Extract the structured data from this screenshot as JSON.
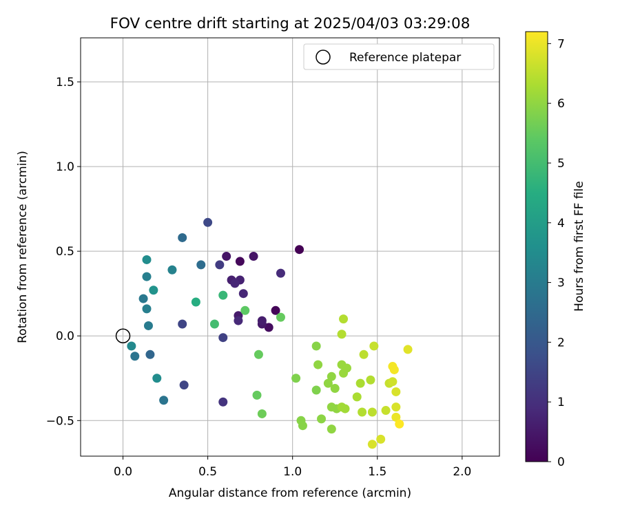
{
  "chart_data": {
    "type": "scatter",
    "title": "FOV centre drift starting at 2025/04/03 03:29:08",
    "xlabel": "Angular distance from reference (arcmin)",
    "ylabel": "Rotation from reference (arcmin)",
    "xlim": [
      -0.25,
      2.22
    ],
    "ylim": [
      -0.71,
      1.76
    ],
    "x_ticks": [
      0.0,
      0.5,
      1.0,
      1.5,
      2.0
    ],
    "x_tick_labels": [
      "0.0",
      "0.5",
      "1.0",
      "1.5",
      "2.0"
    ],
    "y_ticks": [
      -0.5,
      0.0,
      0.5,
      1.0,
      1.5
    ],
    "y_tick_labels": [
      "−0.5",
      "0.0",
      "0.5",
      "1.0",
      "1.5"
    ],
    "grid": true,
    "legend": {
      "position": "top-right",
      "entries": [
        "Reference platepar"
      ]
    },
    "reference_point": {
      "x": 0.0,
      "y": 0.0,
      "label": "Reference platepar"
    },
    "colorbar": {
      "label": "Hours from first FF file",
      "range": [
        0,
        7.2
      ],
      "ticks": [
        0,
        1,
        2,
        3,
        4,
        5,
        6,
        7
      ],
      "colormap": "viridis"
    },
    "points": [
      {
        "x": 1.04,
        "y": 0.51,
        "c": 0.0
      },
      {
        "x": 0.9,
        "y": 0.15,
        "c": 0.1
      },
      {
        "x": 0.69,
        "y": 0.44,
        "c": 0.15
      },
      {
        "x": 0.86,
        "y": 0.05,
        "c": 0.25
      },
      {
        "x": 0.61,
        "y": 0.47,
        "c": 0.4
      },
      {
        "x": 0.77,
        "y": 0.47,
        "c": 0.4
      },
      {
        "x": 0.82,
        "y": 0.07,
        "c": 0.5
      },
      {
        "x": 0.68,
        "y": 0.12,
        "c": 0.55
      },
      {
        "x": 0.82,
        "y": 0.09,
        "c": 0.6
      },
      {
        "x": 0.64,
        "y": 0.33,
        "c": 0.65
      },
      {
        "x": 0.69,
        "y": 0.33,
        "c": 0.7
      },
      {
        "x": 0.66,
        "y": 0.31,
        "c": 0.8
      },
      {
        "x": 0.71,
        "y": 0.25,
        "c": 0.8
      },
      {
        "x": 0.68,
        "y": 0.09,
        "c": 0.85
      },
      {
        "x": 0.93,
        "y": 0.37,
        "c": 0.9
      },
      {
        "x": 0.59,
        "y": -0.39,
        "c": 1.1
      },
      {
        "x": 0.57,
        "y": 0.42,
        "c": 1.3
      },
      {
        "x": 0.59,
        "y": -0.01,
        "c": 1.4
      },
      {
        "x": 0.36,
        "y": -0.29,
        "c": 1.5
      },
      {
        "x": 0.35,
        "y": 0.07,
        "c": 1.5
      },
      {
        "x": 0.5,
        "y": 0.67,
        "c": 1.6
      },
      {
        "x": 0.16,
        "y": -0.11,
        "c": 2.4
      },
      {
        "x": 0.35,
        "y": 0.58,
        "c": 2.5
      },
      {
        "x": 0.46,
        "y": 0.42,
        "c": 2.6
      },
      {
        "x": 0.07,
        "y": -0.12,
        "c": 2.8
      },
      {
        "x": 0.24,
        "y": -0.38,
        "c": 2.8
      },
      {
        "x": 0.12,
        "y": 0.22,
        "c": 2.9
      },
      {
        "x": 0.15,
        "y": 0.06,
        "c": 3.0
      },
      {
        "x": 0.14,
        "y": 0.16,
        "c": 3.1
      },
      {
        "x": 0.14,
        "y": 0.35,
        "c": 3.1
      },
      {
        "x": 0.29,
        "y": 0.39,
        "c": 3.2
      },
      {
        "x": 0.05,
        "y": -0.06,
        "c": 3.4
      },
      {
        "x": 0.2,
        "y": -0.25,
        "c": 3.5
      },
      {
        "x": 0.14,
        "y": 0.45,
        "c": 3.5
      },
      {
        "x": 0.18,
        "y": 0.27,
        "c": 3.7
      },
      {
        "x": 0.43,
        "y": 0.2,
        "c": 4.5
      },
      {
        "x": 0.59,
        "y": 0.24,
        "c": 4.8
      },
      {
        "x": 0.54,
        "y": 0.07,
        "c": 5.0
      },
      {
        "x": 0.72,
        "y": 0.15,
        "c": 5.4
      },
      {
        "x": 0.8,
        "y": -0.11,
        "c": 5.5
      },
      {
        "x": 0.93,
        "y": 0.11,
        "c": 5.5
      },
      {
        "x": 0.79,
        "y": -0.35,
        "c": 5.5
      },
      {
        "x": 0.82,
        "y": -0.46,
        "c": 5.6
      },
      {
        "x": 1.02,
        "y": -0.25,
        "c": 5.8
      },
      {
        "x": 1.14,
        "y": -0.32,
        "c": 5.8
      },
      {
        "x": 1.05,
        "y": -0.5,
        "c": 5.9
      },
      {
        "x": 1.14,
        "y": -0.06,
        "c": 5.9
      },
      {
        "x": 1.06,
        "y": -0.53,
        "c": 5.9
      },
      {
        "x": 1.17,
        "y": -0.49,
        "c": 5.95
      },
      {
        "x": 1.15,
        "y": -0.17,
        "c": 6.0
      },
      {
        "x": 1.21,
        "y": -0.28,
        "c": 6.0
      },
      {
        "x": 1.23,
        "y": -0.24,
        "c": 6.0
      },
      {
        "x": 1.25,
        "y": -0.31,
        "c": 6.0
      },
      {
        "x": 1.23,
        "y": -0.42,
        "c": 6.0
      },
      {
        "x": 1.23,
        "y": -0.55,
        "c": 6.0
      },
      {
        "x": 1.26,
        "y": -0.43,
        "c": 6.0
      },
      {
        "x": 1.29,
        "y": -0.17,
        "c": 6.1
      },
      {
        "x": 1.3,
        "y": -0.22,
        "c": 6.1
      },
      {
        "x": 1.32,
        "y": -0.19,
        "c": 6.1
      },
      {
        "x": 1.29,
        "y": -0.42,
        "c": 6.2
      },
      {
        "x": 1.31,
        "y": -0.43,
        "c": 6.2
      },
      {
        "x": 1.38,
        "y": -0.36,
        "c": 6.3
      },
      {
        "x": 1.4,
        "y": -0.28,
        "c": 6.3
      },
      {
        "x": 1.29,
        "y": 0.01,
        "c": 6.4
      },
      {
        "x": 1.3,
        "y": 0.1,
        "c": 6.4
      },
      {
        "x": 1.41,
        "y": -0.45,
        "c": 6.4
      },
      {
        "x": 1.46,
        "y": -0.26,
        "c": 6.4
      },
      {
        "x": 1.42,
        "y": -0.11,
        "c": 6.5
      },
      {
        "x": 1.47,
        "y": -0.45,
        "c": 6.5
      },
      {
        "x": 1.48,
        "y": -0.06,
        "c": 6.6
      },
      {
        "x": 1.55,
        "y": -0.44,
        "c": 6.6
      },
      {
        "x": 1.57,
        "y": -0.28,
        "c": 6.6
      },
      {
        "x": 1.59,
        "y": -0.27,
        "c": 6.7
      },
      {
        "x": 1.47,
        "y": -0.64,
        "c": 6.8
      },
      {
        "x": 1.52,
        "y": -0.61,
        "c": 6.8
      },
      {
        "x": 1.61,
        "y": -0.33,
        "c": 6.8
      },
      {
        "x": 1.61,
        "y": -0.42,
        "c": 6.8
      },
      {
        "x": 1.68,
        "y": -0.08,
        "c": 6.9
      },
      {
        "x": 1.61,
        "y": -0.48,
        "c": 7.0
      },
      {
        "x": 1.59,
        "y": -0.18,
        "c": 7.1
      },
      {
        "x": 1.6,
        "y": -0.2,
        "c": 7.1
      },
      {
        "x": 1.63,
        "y": -0.52,
        "c": 7.2
      }
    ]
  }
}
